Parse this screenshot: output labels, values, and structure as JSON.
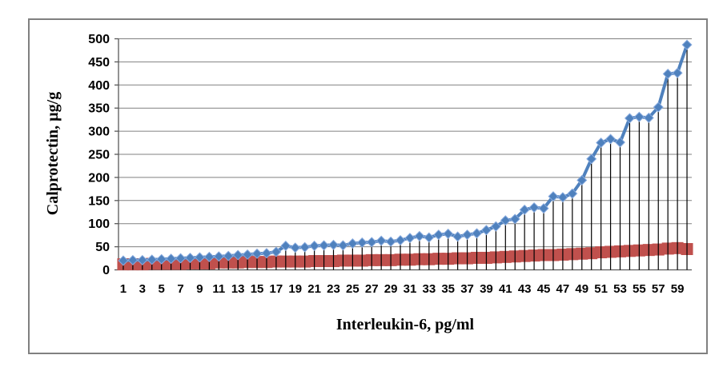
{
  "chart_data": {
    "type": "line",
    "title": "",
    "xlabel": "Interleukin-6, pg/ml",
    "ylabel": "Calprotectin, µg/g",
    "ylim": [
      0,
      500
    ],
    "y_ticks": [
      0,
      50,
      100,
      150,
      200,
      250,
      300,
      350,
      400,
      450,
      500
    ],
    "x_ticks": [
      1,
      3,
      5,
      7,
      9,
      11,
      13,
      15,
      17,
      19,
      21,
      23,
      25,
      27,
      29,
      31,
      33,
      35,
      37,
      39,
      41,
      43,
      45,
      47,
      49,
      51,
      53,
      55,
      57,
      59
    ],
    "n_points": 60,
    "grid": true,
    "drop_lines": true,
    "legend": "none",
    "series": [
      {
        "name": "Calprotectin, µg/g",
        "marker": "diamond",
        "color": "#4F81BD",
        "values": [
          20,
          21,
          21,
          22,
          23,
          24,
          25,
          26,
          27,
          28,
          29,
          30,
          32,
          33,
          35,
          36,
          39,
          52,
          48,
          49,
          52,
          53,
          54,
          53,
          57,
          59,
          60,
          63,
          61,
          64,
          69,
          73,
          70,
          76,
          78,
          72,
          76,
          79,
          86,
          94,
          107,
          110,
          130,
          135,
          133,
          159,
          157,
          165,
          194,
          240,
          275,
          283,
          276,
          328,
          331,
          329,
          352,
          424,
          426,
          487
        ]
      },
      {
        "name": "Interleukin-6, pg/ml",
        "marker": "square",
        "color": "#C0504D",
        "values": [
          12,
          12,
          12,
          13,
          13,
          13,
          13,
          14,
          14,
          14,
          16,
          16,
          16,
          17,
          17,
          17,
          18,
          18,
          18,
          18,
          19,
          19,
          19,
          20,
          20,
          20,
          21,
          21,
          21,
          22,
          22,
          23,
          23,
          24,
          24,
          25,
          25,
          26,
          26,
          27,
          28,
          29,
          30,
          31,
          32,
          32,
          33,
          34,
          35,
          36,
          38,
          39,
          40,
          41,
          42,
          43,
          44,
          46,
          47,
          45
        ]
      }
    ],
    "colors": {
      "grid": "#808080",
      "axis": "#595959",
      "drop_lines": "#000000",
      "border": "#808080",
      "background": "#FFFFFF",
      "text": "#000000"
    }
  }
}
